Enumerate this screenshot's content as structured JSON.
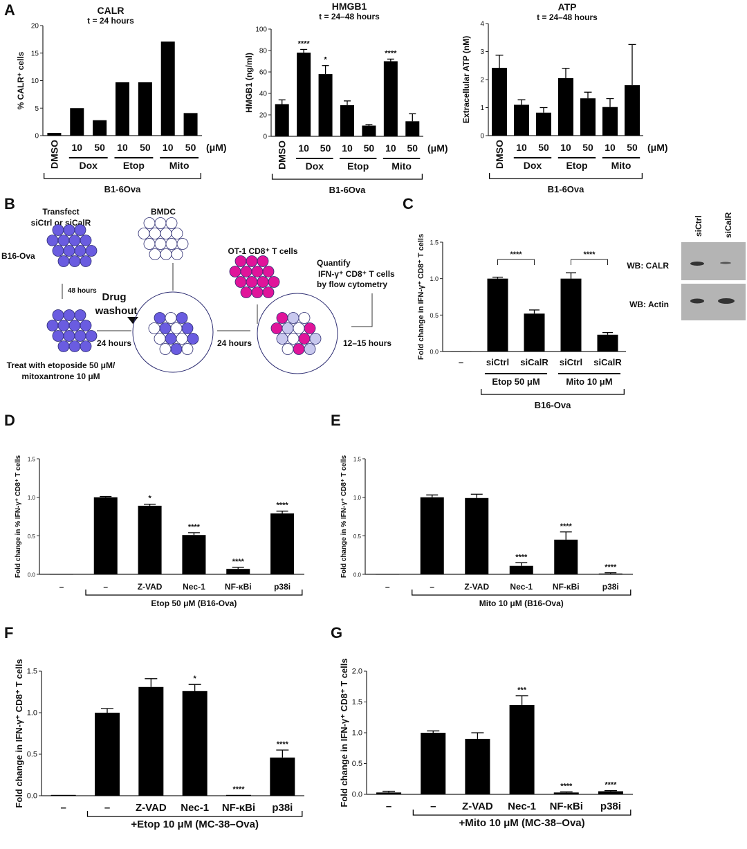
{
  "panel_letters": [
    "A",
    "B",
    "C",
    "D",
    "E",
    "F",
    "G"
  ],
  "diagram_b": {
    "transfect": "Transfect",
    "transfect2": "siCtrl or siCalR",
    "b16": "B16-Ova",
    "bmdc": "BMDC",
    "ot1": "OT-1 CD8⁺ T cells",
    "h48": "48 hours",
    "drug": "Drug",
    "washout": "washout",
    "h24a": "24 hours",
    "h24b": "24 hours",
    "h1215": "12–15 hours",
    "quantify": "Quantify",
    "quantify2": "IFN-γ⁺ CD8⁺ T cells",
    "quantify3": "by flow cytometry",
    "treat": "Treat with etoposide 50 μM/",
    "treat2": "mitoxantrone 10 μM",
    "colors": {
      "tumor": "#6a5ce0",
      "tcell": "#e0149a",
      "outline": "#2a2a70"
    }
  },
  "western_blot": {
    "lanes": [
      "siCtrl",
      "siCalR"
    ],
    "rows": [
      "WB: CALR",
      "WB: Actin"
    ]
  },
  "chart_data": [
    {
      "id": "A1",
      "type": "bar",
      "title": "CALR",
      "subtitle": "t = 24 hours",
      "ylabel": "% CALR⁺ cells",
      "ylim": [
        0,
        20
      ],
      "yticks": [
        "0",
        "5",
        "10",
        "15",
        "20"
      ],
      "categories": [
        "DMSO",
        "10",
        "50",
        "10",
        "50",
        "10",
        "50"
      ],
      "values": [
        0.5,
        5.0,
        2.8,
        9.7,
        9.7,
        17.1,
        4.1
      ],
      "errors": [
        0,
        0,
        0,
        0,
        0,
        0,
        0
      ],
      "sig": [
        "",
        "",
        "",
        "",
        "",
        "",
        ""
      ],
      "unit": "(μM)",
      "groups": [
        {
          "label": "Dox",
          "from": 1,
          "to": 2
        },
        {
          "label": "Etop",
          "from": 3,
          "to": 4
        },
        {
          "label": "Mito",
          "from": 5,
          "to": 6
        }
      ],
      "bracket": {
        "label": "B1-6Ova",
        "from": 0,
        "to": 6
      },
      "rotate_first": true
    },
    {
      "id": "A2",
      "type": "bar",
      "title": "HMGB1",
      "subtitle": "t = 24–48 hours",
      "ylabel": "HMGB1 (ng/ml)",
      "ylim": [
        0,
        100
      ],
      "yticks": [
        "0",
        "20",
        "40",
        "60",
        "80",
        "100"
      ],
      "categories": [
        "DMSO",
        "10",
        "50",
        "10",
        "50",
        "10",
        "50"
      ],
      "values": [
        30,
        78,
        58,
        29,
        10,
        70,
        14
      ],
      "errors": [
        4,
        3,
        8,
        4,
        1,
        2,
        7
      ],
      "sig": [
        "",
        "****",
        "*",
        "",
        "",
        "****",
        ""
      ],
      "unit": "(μM)",
      "groups": [
        {
          "label": "Dox",
          "from": 1,
          "to": 2
        },
        {
          "label": "Etop",
          "from": 3,
          "to": 4
        },
        {
          "label": "Mito",
          "from": 5,
          "to": 6
        }
      ],
      "bracket": {
        "label": "B1-6Ova",
        "from": 0,
        "to": 6
      },
      "rotate_first": true
    },
    {
      "id": "A3",
      "type": "bar",
      "title": "ATP",
      "subtitle": "t = 24–48 hours",
      "ylabel": "Extracellular ATP (nM)",
      "ylim": [
        0,
        4
      ],
      "yticks": [
        "0",
        "1",
        "2",
        "3",
        "4"
      ],
      "categories": [
        "DMSO",
        "10",
        "50",
        "10",
        "50",
        "10",
        "50"
      ],
      "values": [
        2.42,
        1.1,
        0.82,
        2.05,
        1.33,
        1.02,
        1.8
      ],
      "errors": [
        0.45,
        0.18,
        0.18,
        0.35,
        0.22,
        0.3,
        1.45
      ],
      "sig": [
        "",
        "",
        "",
        "",
        "",
        "",
        ""
      ],
      "unit": "(μM)",
      "groups": [
        {
          "label": "Dox",
          "from": 1,
          "to": 2
        },
        {
          "label": "Etop",
          "from": 3,
          "to": 4
        },
        {
          "label": "Mito",
          "from": 5,
          "to": 6
        }
      ],
      "bracket": {
        "label": "B1-6Ova",
        "from": 0,
        "to": 6
      },
      "rotate_first": true
    },
    {
      "id": "C",
      "type": "bar",
      "title": "",
      "subtitle": "",
      "ylabel": "Fold change in IFN-γ⁺ CD8⁺ T cells",
      "ylim": [
        0,
        1.5
      ],
      "yticks": [
        "0.0",
        "0.5",
        "1.0",
        "1.5"
      ],
      "categories": [
        "–",
        "siCtrl",
        "siCalR",
        "siCtrl",
        "siCalR"
      ],
      "values": [
        0,
        1.0,
        0.52,
        1.0,
        0.23
      ],
      "errors": [
        0,
        0.02,
        0.05,
        0.08,
        0.03
      ],
      "sig": [
        "",
        "",
        "",
        "",
        ""
      ],
      "comparisons": [
        {
          "from": 1,
          "to": 2,
          "label": "****"
        },
        {
          "from": 3,
          "to": 4,
          "label": "****"
        }
      ],
      "groups": [
        {
          "label": "Etop 50 μM",
          "from": 1,
          "to": 2
        },
        {
          "label": "Mito 10 μM",
          "from": 3,
          "to": 4
        }
      ],
      "bracket": {
        "label": "B16-Ova",
        "from": 1,
        "to": 4
      }
    },
    {
      "id": "D",
      "type": "bar",
      "ylabel": "Fold change in % IFN-γ⁺ CD8⁺ T cells",
      "ylim": [
        0,
        1.5
      ],
      "yticks": [
        "0.0",
        "0.5",
        "1.0",
        "1.5"
      ],
      "categories": [
        "–",
        "–",
        "Z-VAD",
        "Nec-1",
        "NF-κBi",
        "p38i"
      ],
      "values": [
        0,
        1.0,
        0.89,
        0.51,
        0.07,
        0.79
      ],
      "errors": [
        0,
        0.01,
        0.02,
        0.03,
        0.02,
        0.03
      ],
      "sig": [
        "",
        "",
        "*",
        "****",
        "****",
        "****"
      ],
      "bracket": {
        "label": "Etop 50 μM (B16-Ova)",
        "from": 1,
        "to": 5
      }
    },
    {
      "id": "E",
      "type": "bar",
      "ylabel": "Fold change in % IFN-γ⁺ CD8⁺ T cells",
      "ylim": [
        0,
        1.5
      ],
      "yticks": [
        "0.0",
        "0.5",
        "1.0",
        "1.5"
      ],
      "categories": [
        "–",
        "–",
        "Z-VAD",
        "Nec-1",
        "NF-κBi",
        "p38i"
      ],
      "values": [
        0,
        1.0,
        0.99,
        0.11,
        0.45,
        0.01
      ],
      "errors": [
        0,
        0.03,
        0.05,
        0.04,
        0.1,
        0.01
      ],
      "sig": [
        "",
        "",
        "",
        "****",
        "****",
        "****"
      ],
      "bracket": {
        "label": "Mito 10 μM (B16-Ova)",
        "from": 1,
        "to": 5
      }
    },
    {
      "id": "F",
      "type": "bar",
      "ylabel": "Fold change in IFN-γ⁺ CD8⁺ T cells",
      "ylim": [
        0,
        1.5
      ],
      "yticks": [
        "0.0",
        "0.5",
        "1.0",
        "1.5"
      ],
      "categories": [
        "–",
        "–",
        "Z-VAD",
        "Nec-1",
        "NF-κBi",
        "p38i"
      ],
      "values": [
        0.01,
        1.0,
        1.31,
        1.26,
        0.01,
        0.46
      ],
      "errors": [
        0,
        0.05,
        0.1,
        0.08,
        0,
        0.09
      ],
      "sig": [
        "",
        "",
        "",
        "*",
        "****",
        "****"
      ],
      "bracket": {
        "label": "+Etop 10 μM (MC-38–Ova)",
        "from": 1,
        "to": 5
      }
    },
    {
      "id": "G",
      "type": "bar",
      "ylabel": "Fold change in IFN-γ⁺ CD8⁺ T cells",
      "ylim": [
        0,
        2.0
      ],
      "yticks": [
        "0.0",
        "0.5",
        "1.0",
        "1.5",
        "2.0"
      ],
      "categories": [
        "–",
        "–",
        "Z-VAD",
        "Nec-1",
        "NF-κBi",
        "p38i"
      ],
      "values": [
        0.03,
        1.0,
        0.9,
        1.45,
        0.03,
        0.05
      ],
      "errors": [
        0.02,
        0.03,
        0.1,
        0.15,
        0.01,
        0.01
      ],
      "sig": [
        "",
        "",
        "",
        "***",
        "****",
        "****"
      ],
      "bracket": {
        "label": "+Mito 10 μM (MC-38–Ova)",
        "from": 1,
        "to": 5
      }
    }
  ]
}
